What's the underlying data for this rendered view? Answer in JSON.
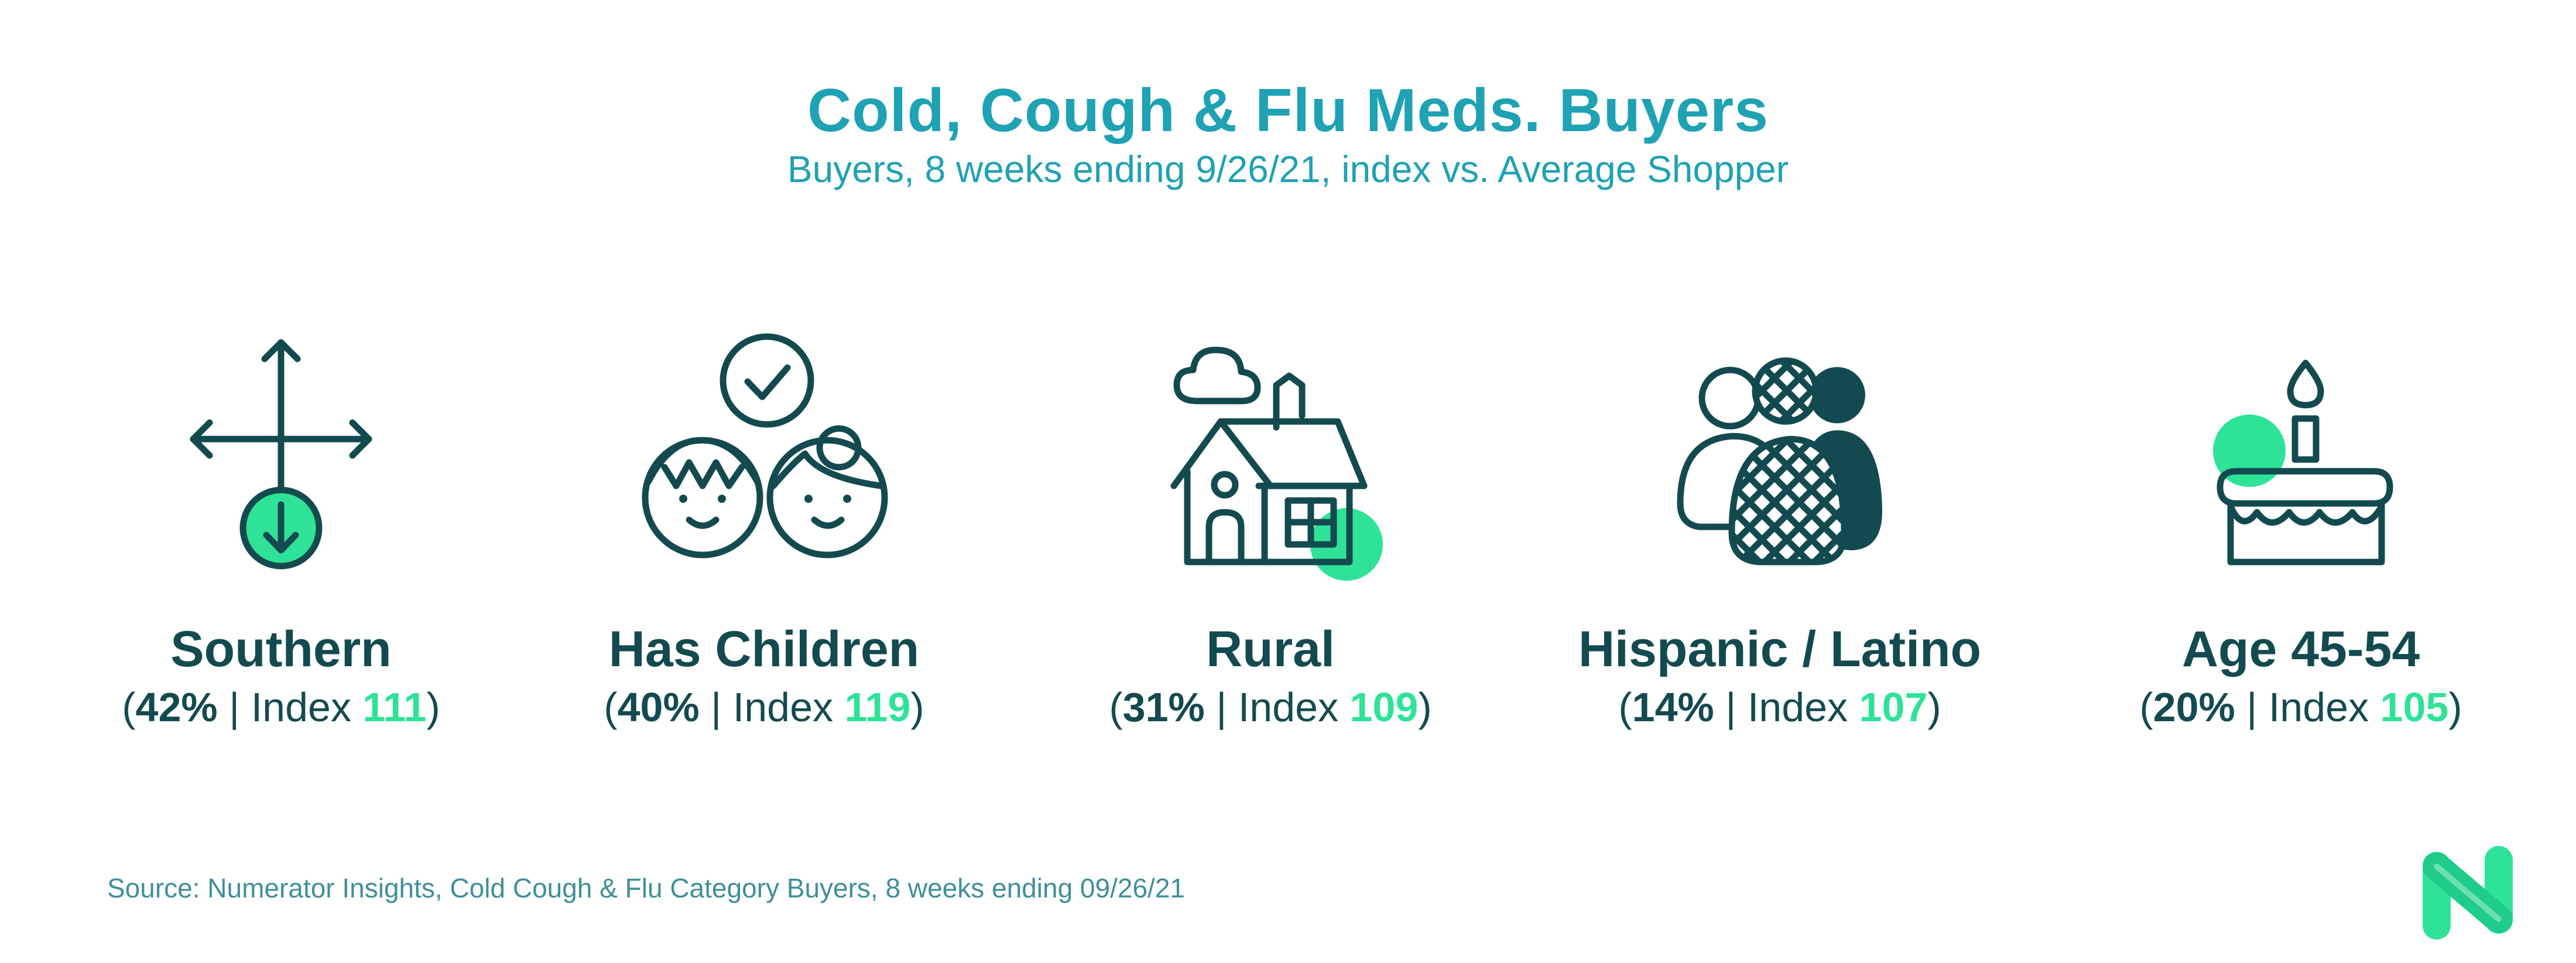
{
  "header": {
    "title": "Cold, Cough & Flu Meds. Buyers",
    "subtitle": "Buyers, 8 weeks ending 9/26/21, index vs. Average Shopper"
  },
  "colors": {
    "teal_title": "#1fa2b3",
    "dark_ink": "#134a4f",
    "accent_green": "#2ee398"
  },
  "segments": [
    {
      "label": "Southern",
      "pct": "42%",
      "sep": " | Index ",
      "index": "111",
      "icon": "directional-arrows-icon"
    },
    {
      "label": "Has Children",
      "pct": "40%",
      "sep": " | Index ",
      "index": "119",
      "icon": "children-faces-icon"
    },
    {
      "label": "Rural",
      "pct": "31%",
      "sep": " | Index ",
      "index": "109",
      "icon": "farmhouse-icon"
    },
    {
      "label": "Hispanic / Latino",
      "pct": "14%",
      "sep": " | Index ",
      "index": "107",
      "icon": "people-group-icon"
    },
    {
      "label": "Age 45-54",
      "pct": "20%",
      "sep": " | Index ",
      "index": "105",
      "icon": "birthday-cake-icon"
    }
  ],
  "footer": {
    "source": "Source: Numerator Insights, Cold Cough & Flu Category Buyers, 8 weeks ending 09/26/21",
    "logo": "numerator-n-logo"
  }
}
